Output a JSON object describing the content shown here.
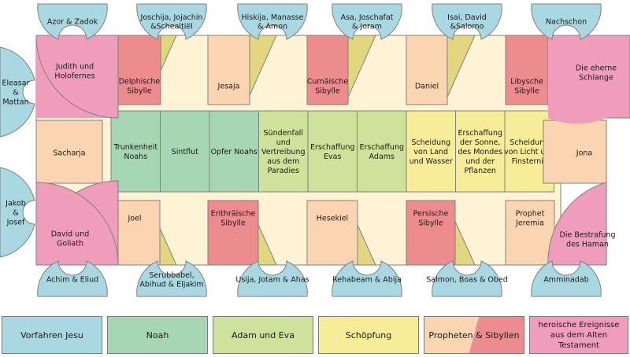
{
  "ancestors": {
    "top": [
      "Azor & Zadok",
      "Joschija, Jojachin\n&Schealtiël",
      "Hiskija, Manasse\n& Amon",
      "Asa, Joschafat\n& Joram",
      "Isai, David\n&Salomo",
      "Nachschon"
    ],
    "bottom": [
      "Achim & Eliud",
      "Serubbabel,\nAbihud & Eljakim",
      "Usija, Jotam & Ahas",
      "Rehabeam & Abija",
      "Salmon, Boas & Obed",
      "Amminadab"
    ],
    "left": [
      "Eleasar\n&\nMattan",
      "Jakob\n&\nJosef"
    ]
  },
  "heroic": {
    "judith": "Judith und\nHolofernes",
    "serpent": "Die eherne\nSchlange",
    "david": "David und\nGoliath",
    "haman": "Die Bestrafung\ndes Haman"
  },
  "prophets_sibyls": {
    "top": [
      "Delphische\nSibylle",
      "Jesaja",
      "Cumäische\nSibylle",
      "Daniel",
      "Libysche\nSibylle"
    ],
    "bottom": [
      "Joel",
      "Erithräische\nSibylle",
      "Hesekiel",
      "Persische\nSibylle",
      "Prophet\nJeremia"
    ],
    "left": "Sacharja",
    "right": "Jona"
  },
  "ceiling_panels": [
    "Trunkenheit\nNoahs",
    "Sintflut",
    "Opfer Noahs",
    "Sündenfall\nund\nVertreibung\naus dem\nParadies",
    "Erschaffung\nEvas",
    "Erschaffung\nAdams",
    "Scheidung\nvon Land\nund Wasser",
    "Erschaffung\nder Sonne,\ndes Mondes\nund der\nPflanzen",
    "Scheidung\nvon Licht und\nFinsternis"
  ],
  "legend": [
    "Vorfahren Jesu",
    "Noah",
    "Adam und Eva",
    "Schöpfung",
    "Propheten & Sibyllen",
    "heroische Ereignisse\naus dem Alten Testament"
  ],
  "colors": {
    "ancestors": "#a9d8e2",
    "noah": "#a6d6b4",
    "adam_eva": "#cfe29b",
    "creation": "#f7ec97",
    "prophet": "#fbd5b2",
    "sibyl": "#ec8c8e",
    "heroic": "#f09dbc",
    "spandrel": "#e2d67f",
    "frame": "#fff3d6",
    "outline": "#808080"
  }
}
